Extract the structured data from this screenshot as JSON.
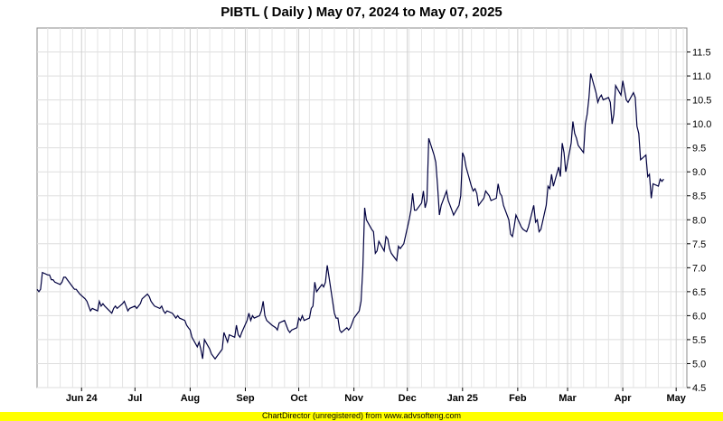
{
  "footer": {
    "text": "ChartDirector (unregistered) from www.advsofteng.com",
    "color": "#ffff00"
  },
  "chart_data": {
    "type": "line",
    "title": "PIBTL ( Daily ) May 07, 2024 to May 07, 2025",
    "xlabel": "",
    "ylabel": "",
    "ylim": [
      4.5,
      12.0
    ],
    "y_ticks": [
      "4.5",
      "5.0",
      "5.5",
      "6.0",
      "6.5",
      "7.0",
      "7.5",
      "8.0",
      "8.5",
      "9.0",
      "9.5",
      "10.0",
      "10.5",
      "11.0",
      "11.5"
    ],
    "y_tick_values": [
      4.5,
      5.0,
      5.5,
      6.0,
      6.5,
      7.0,
      7.5,
      8.0,
      8.5,
      9.0,
      9.5,
      10.0,
      10.5,
      11.0,
      11.5
    ],
    "x_ticks": [
      {
        "label": "Jun 24",
        "date": "2024-06-01"
      },
      {
        "label": "Jul",
        "date": "2024-07-01"
      },
      {
        "label": "Aug",
        "date": "2024-08-01"
      },
      {
        "label": "Sep",
        "date": "2024-09-01"
      },
      {
        "label": "Oct",
        "date": "2024-10-01"
      },
      {
        "label": "Nov",
        "date": "2024-11-01"
      },
      {
        "label": "Dec",
        "date": "2024-12-01"
      },
      {
        "label": "Jan 25",
        "date": "2025-01-01"
      },
      {
        "label": "Feb",
        "date": "2025-02-01"
      },
      {
        "label": "Mar",
        "date": "2025-03-01"
      },
      {
        "label": "Apr",
        "date": "2025-04-01"
      },
      {
        "label": "May",
        "date": "2025-05-01"
      }
    ],
    "x_range": [
      "2024-05-07",
      "2025-05-07"
    ],
    "grid": true,
    "legend": "none",
    "line_color": "#000040",
    "series": [
      {
        "values": [
          [
            "2024-05-07",
            6.55
          ],
          [
            "2024-05-08",
            6.5
          ],
          [
            "2024-05-09",
            6.55
          ],
          [
            "2024-05-10",
            6.9
          ],
          [
            "2024-05-13",
            6.85
          ],
          [
            "2024-05-14",
            6.85
          ],
          [
            "2024-05-15",
            6.75
          ],
          [
            "2024-05-16",
            6.75
          ],
          [
            "2024-05-17",
            6.7
          ],
          [
            "2024-05-20",
            6.65
          ],
          [
            "2024-05-21",
            6.7
          ],
          [
            "2024-05-22",
            6.8
          ],
          [
            "2024-05-23",
            6.8
          ],
          [
            "2024-05-24",
            6.75
          ],
          [
            "2024-05-27",
            6.6
          ],
          [
            "2024-05-28",
            6.55
          ],
          [
            "2024-05-29",
            6.55
          ],
          [
            "2024-05-30",
            6.5
          ],
          [
            "2024-05-31",
            6.45
          ],
          [
            "2024-06-03",
            6.35
          ],
          [
            "2024-06-04",
            6.3
          ],
          [
            "2024-06-05",
            6.2
          ],
          [
            "2024-06-06",
            6.1
          ],
          [
            "2024-06-07",
            6.15
          ],
          [
            "2024-06-10",
            6.1
          ],
          [
            "2024-06-11",
            6.3
          ],
          [
            "2024-06-12",
            6.2
          ],
          [
            "2024-06-13",
            6.25
          ],
          [
            "2024-06-14",
            6.2
          ],
          [
            "2024-06-18",
            6.05
          ],
          [
            "2024-06-19",
            6.15
          ],
          [
            "2024-06-20",
            6.2
          ],
          [
            "2024-06-21",
            6.15
          ],
          [
            "2024-06-24",
            6.25
          ],
          [
            "2024-06-25",
            6.3
          ],
          [
            "2024-06-26",
            6.2
          ],
          [
            "2024-06-27",
            6.1
          ],
          [
            "2024-06-28",
            6.15
          ],
          [
            "2024-07-01",
            6.2
          ],
          [
            "2024-07-02",
            6.15
          ],
          [
            "2024-07-03",
            6.2
          ],
          [
            "2024-07-04",
            6.25
          ],
          [
            "2024-07-05",
            6.35
          ],
          [
            "2024-07-08",
            6.45
          ],
          [
            "2024-07-09",
            6.4
          ],
          [
            "2024-07-10",
            6.3
          ],
          [
            "2024-07-11",
            6.25
          ],
          [
            "2024-07-12",
            6.2
          ],
          [
            "2024-07-15",
            6.15
          ],
          [
            "2024-07-16",
            6.2
          ],
          [
            "2024-07-17",
            6.1
          ],
          [
            "2024-07-18",
            6.05
          ],
          [
            "2024-07-19",
            6.1
          ],
          [
            "2024-07-22",
            6.05
          ],
          [
            "2024-07-23",
            6.0
          ],
          [
            "2024-07-24",
            5.95
          ],
          [
            "2024-07-25",
            6.0
          ],
          [
            "2024-07-26",
            5.95
          ],
          [
            "2024-07-29",
            5.9
          ],
          [
            "2024-07-30",
            5.8
          ],
          [
            "2024-07-31",
            5.75
          ],
          [
            "2024-08-01",
            5.7
          ],
          [
            "2024-08-02",
            5.55
          ],
          [
            "2024-08-05",
            5.35
          ],
          [
            "2024-08-06",
            5.45
          ],
          [
            "2024-08-07",
            5.3
          ],
          [
            "2024-08-08",
            5.1
          ],
          [
            "2024-08-09",
            5.5
          ],
          [
            "2024-08-12",
            5.3
          ],
          [
            "2024-08-13",
            5.2
          ],
          [
            "2024-08-15",
            5.1
          ],
          [
            "2024-08-16",
            5.15
          ],
          [
            "2024-08-19",
            5.3
          ],
          [
            "2024-08-20",
            5.65
          ],
          [
            "2024-08-21",
            5.55
          ],
          [
            "2024-08-22",
            5.45
          ],
          [
            "2024-08-23",
            5.6
          ],
          [
            "2024-08-26",
            5.55
          ],
          [
            "2024-08-27",
            5.8
          ],
          [
            "2024-08-28",
            5.6
          ],
          [
            "2024-08-29",
            5.55
          ],
          [
            "2024-08-30",
            5.65
          ],
          [
            "2024-09-02",
            5.9
          ],
          [
            "2024-09-03",
            6.05
          ],
          [
            "2024-09-04",
            5.9
          ],
          [
            "2024-09-05",
            6.0
          ],
          [
            "2024-09-06",
            5.95
          ],
          [
            "2024-09-09",
            6.0
          ],
          [
            "2024-09-10",
            6.1
          ],
          [
            "2024-09-11",
            6.3
          ],
          [
            "2024-09-12",
            6.0
          ],
          [
            "2024-09-13",
            5.9
          ],
          [
            "2024-09-16",
            5.8
          ],
          [
            "2024-09-18",
            5.75
          ],
          [
            "2024-09-19",
            5.7
          ],
          [
            "2024-09-20",
            5.85
          ],
          [
            "2024-09-23",
            5.9
          ],
          [
            "2024-09-24",
            5.8
          ],
          [
            "2024-09-25",
            5.7
          ],
          [
            "2024-09-26",
            5.65
          ],
          [
            "2024-09-27",
            5.7
          ],
          [
            "2024-09-30",
            5.75
          ],
          [
            "2024-10-01",
            5.95
          ],
          [
            "2024-10-02",
            5.9
          ],
          [
            "2024-10-03",
            6.0
          ],
          [
            "2024-10-04",
            5.9
          ],
          [
            "2024-10-07",
            5.95
          ],
          [
            "2024-10-08",
            6.15
          ],
          [
            "2024-10-09",
            6.2
          ],
          [
            "2024-10-10",
            6.7
          ],
          [
            "2024-10-11",
            6.5
          ],
          [
            "2024-10-14",
            6.65
          ],
          [
            "2024-10-15",
            6.6
          ],
          [
            "2024-10-16",
            6.7
          ],
          [
            "2024-10-17",
            7.05
          ],
          [
            "2024-10-18",
            6.8
          ],
          [
            "2024-10-21",
            6.05
          ],
          [
            "2024-10-22",
            5.95
          ],
          [
            "2024-10-23",
            5.95
          ],
          [
            "2024-10-24",
            5.7
          ],
          [
            "2024-10-25",
            5.65
          ],
          [
            "2024-10-28",
            5.75
          ],
          [
            "2024-10-29",
            5.7
          ],
          [
            "2024-10-30",
            5.75
          ],
          [
            "2024-10-31",
            5.85
          ],
          [
            "2024-11-01",
            5.95
          ],
          [
            "2024-11-04",
            6.1
          ],
          [
            "2024-11-05",
            6.3
          ],
          [
            "2024-11-06",
            7.0
          ],
          [
            "2024-11-07",
            8.25
          ],
          [
            "2024-11-08",
            8.0
          ],
          [
            "2024-11-11",
            7.8
          ],
          [
            "2024-11-12",
            7.75
          ],
          [
            "2024-11-13",
            7.3
          ],
          [
            "2024-11-14",
            7.35
          ],
          [
            "2024-11-15",
            7.55
          ],
          [
            "2024-11-18",
            7.35
          ],
          [
            "2024-11-19",
            7.65
          ],
          [
            "2024-11-20",
            7.6
          ],
          [
            "2024-11-21",
            7.4
          ],
          [
            "2024-11-22",
            7.3
          ],
          [
            "2024-11-25",
            7.15
          ],
          [
            "2024-11-26",
            7.45
          ],
          [
            "2024-11-27",
            7.4
          ],
          [
            "2024-11-28",
            7.45
          ],
          [
            "2024-11-29",
            7.5
          ],
          [
            "2024-12-02",
            8.0
          ],
          [
            "2024-12-03",
            8.2
          ],
          [
            "2024-12-04",
            8.55
          ],
          [
            "2024-12-05",
            8.2
          ],
          [
            "2024-12-06",
            8.2
          ],
          [
            "2024-12-09",
            8.35
          ],
          [
            "2024-12-10",
            8.6
          ],
          [
            "2024-12-11",
            8.25
          ],
          [
            "2024-12-12",
            8.4
          ],
          [
            "2024-12-13",
            9.7
          ],
          [
            "2024-12-16",
            9.35
          ],
          [
            "2024-12-17",
            9.2
          ],
          [
            "2024-12-18",
            8.7
          ],
          [
            "2024-12-19",
            8.1
          ],
          [
            "2024-12-20",
            8.3
          ],
          [
            "2024-12-23",
            8.6
          ],
          [
            "2024-12-24",
            8.4
          ],
          [
            "2024-12-26",
            8.2
          ],
          [
            "2024-12-27",
            8.1
          ],
          [
            "2024-12-30",
            8.3
          ],
          [
            "2024-12-31",
            8.5
          ],
          [
            "2025-01-01",
            9.4
          ],
          [
            "2025-01-02",
            9.3
          ],
          [
            "2025-01-03",
            9.1
          ],
          [
            "2025-01-06",
            8.7
          ],
          [
            "2025-01-07",
            8.6
          ],
          [
            "2025-01-08",
            8.65
          ],
          [
            "2025-01-09",
            8.55
          ],
          [
            "2025-01-10",
            8.3
          ],
          [
            "2025-01-13",
            8.45
          ],
          [
            "2025-01-14",
            8.6
          ],
          [
            "2025-01-15",
            8.55
          ],
          [
            "2025-01-16",
            8.5
          ],
          [
            "2025-01-17",
            8.4
          ],
          [
            "2025-01-20",
            8.45
          ],
          [
            "2025-01-21",
            8.75
          ],
          [
            "2025-01-22",
            8.55
          ],
          [
            "2025-01-23",
            8.5
          ],
          [
            "2025-01-24",
            8.3
          ],
          [
            "2025-01-27",
            8.0
          ],
          [
            "2025-01-28",
            7.7
          ],
          [
            "2025-01-29",
            7.65
          ],
          [
            "2025-01-30",
            7.85
          ],
          [
            "2025-01-31",
            8.1
          ],
          [
            "2025-02-03",
            7.85
          ],
          [
            "2025-02-04",
            7.8
          ],
          [
            "2025-02-06",
            7.75
          ],
          [
            "2025-02-07",
            7.85
          ],
          [
            "2025-02-10",
            8.3
          ],
          [
            "2025-02-11",
            7.95
          ],
          [
            "2025-02-12",
            8.0
          ],
          [
            "2025-02-13",
            7.75
          ],
          [
            "2025-02-14",
            7.8
          ],
          [
            "2025-02-17",
            8.3
          ],
          [
            "2025-02-18",
            8.7
          ],
          [
            "2025-02-19",
            8.65
          ],
          [
            "2025-02-20",
            8.95
          ],
          [
            "2025-02-21",
            8.7
          ],
          [
            "2025-02-24",
            9.1
          ],
          [
            "2025-02-25",
            8.9
          ],
          [
            "2025-02-26",
            9.6
          ],
          [
            "2025-02-27",
            9.4
          ],
          [
            "2025-02-28",
            9.0
          ],
          [
            "2025-03-03",
            9.6
          ],
          [
            "2025-03-04",
            10.05
          ],
          [
            "2025-03-05",
            9.8
          ],
          [
            "2025-03-06",
            9.7
          ],
          [
            "2025-03-07",
            9.55
          ],
          [
            "2025-03-10",
            9.4
          ],
          [
            "2025-03-11",
            10.0
          ],
          [
            "2025-03-12",
            10.2
          ],
          [
            "2025-03-13",
            10.55
          ],
          [
            "2025-03-14",
            11.05
          ],
          [
            "2025-03-17",
            10.65
          ],
          [
            "2025-03-18",
            10.45
          ],
          [
            "2025-03-19",
            10.55
          ],
          [
            "2025-03-20",
            10.6
          ],
          [
            "2025-03-21",
            10.5
          ],
          [
            "2025-03-24",
            10.55
          ],
          [
            "2025-03-25",
            10.45
          ],
          [
            "2025-03-26",
            10.0
          ],
          [
            "2025-03-27",
            10.2
          ],
          [
            "2025-03-28",
            10.8
          ],
          [
            "2025-03-31",
            10.6
          ],
          [
            "2025-04-01",
            10.9
          ],
          [
            "2025-04-02",
            10.7
          ],
          [
            "2025-04-03",
            10.5
          ],
          [
            "2025-04-04",
            10.45
          ],
          [
            "2025-04-07",
            10.65
          ],
          [
            "2025-04-08",
            10.55
          ],
          [
            "2025-04-09",
            9.95
          ],
          [
            "2025-04-10",
            9.8
          ],
          [
            "2025-04-11",
            9.25
          ],
          [
            "2025-04-14",
            9.35
          ],
          [
            "2025-04-15",
            8.9
          ],
          [
            "2025-04-16",
            8.95
          ],
          [
            "2025-04-17",
            8.45
          ],
          [
            "2025-04-18",
            8.75
          ],
          [
            "2025-04-21",
            8.7
          ],
          [
            "2025-04-22",
            8.85
          ],
          [
            "2025-04-23",
            8.8
          ],
          [
            "2025-04-24",
            8.85
          ]
        ]
      }
    ]
  }
}
